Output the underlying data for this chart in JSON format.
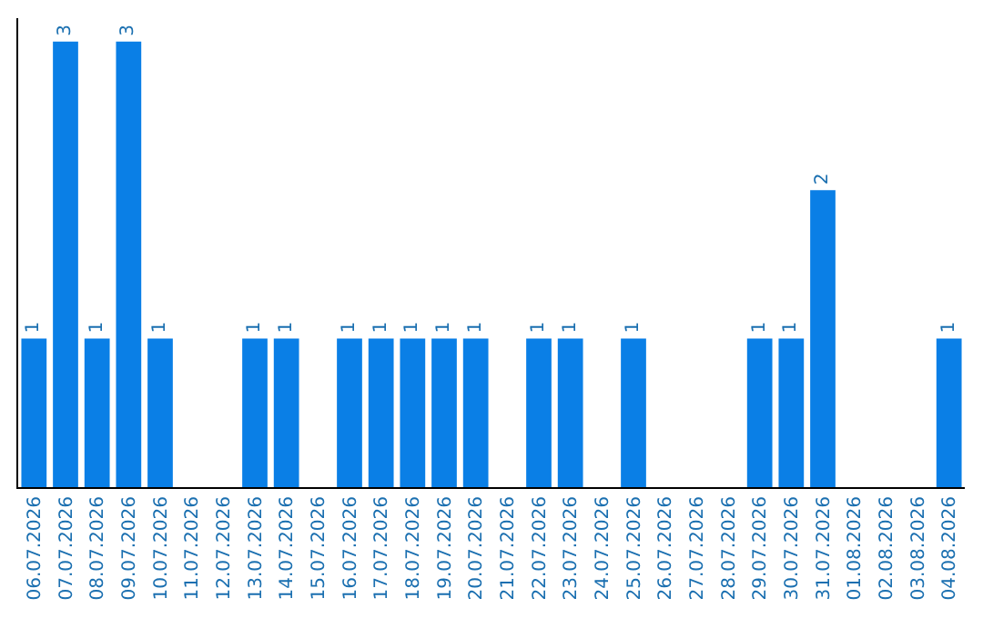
{
  "chart_data": {
    "type": "bar",
    "categories": [
      "06.07.2026",
      "07.07.2026",
      "08.07.2026",
      "09.07.2026",
      "10.07.2026",
      "11.07.2026",
      "12.07.2026",
      "13.07.2026",
      "14.07.2026",
      "15.07.2026",
      "16.07.2026",
      "17.07.2026",
      "18.07.2026",
      "19.07.2026",
      "20.07.2026",
      "21.07.2026",
      "22.07.2026",
      "23.07.2026",
      "24.07.2026",
      "25.07.2026",
      "26.07.2026",
      "27.07.2026",
      "28.07.2026",
      "29.07.2026",
      "30.07.2026",
      "31.07.2026",
      "01.08.2026",
      "02.08.2026",
      "03.08.2026",
      "04.08.2026"
    ],
    "values": [
      1,
      3,
      1,
      3,
      1,
      0,
      0,
      1,
      1,
      0,
      1,
      1,
      1,
      1,
      1,
      0,
      1,
      1,
      0,
      1,
      0,
      0,
      0,
      1,
      1,
      2,
      0,
      0,
      0,
      1
    ],
    "value_labels": [
      "1",
      "3",
      "1",
      "3",
      "1",
      null,
      null,
      "1",
      "1",
      null,
      "1",
      "1",
      "1",
      "1",
      "1",
      null,
      "1",
      "1",
      null,
      "1",
      null,
      null,
      null,
      "1",
      "1",
      "2",
      null,
      null,
      null,
      "1"
    ],
    "color": "#0a7fe6",
    "tick_labels": "x"
  }
}
